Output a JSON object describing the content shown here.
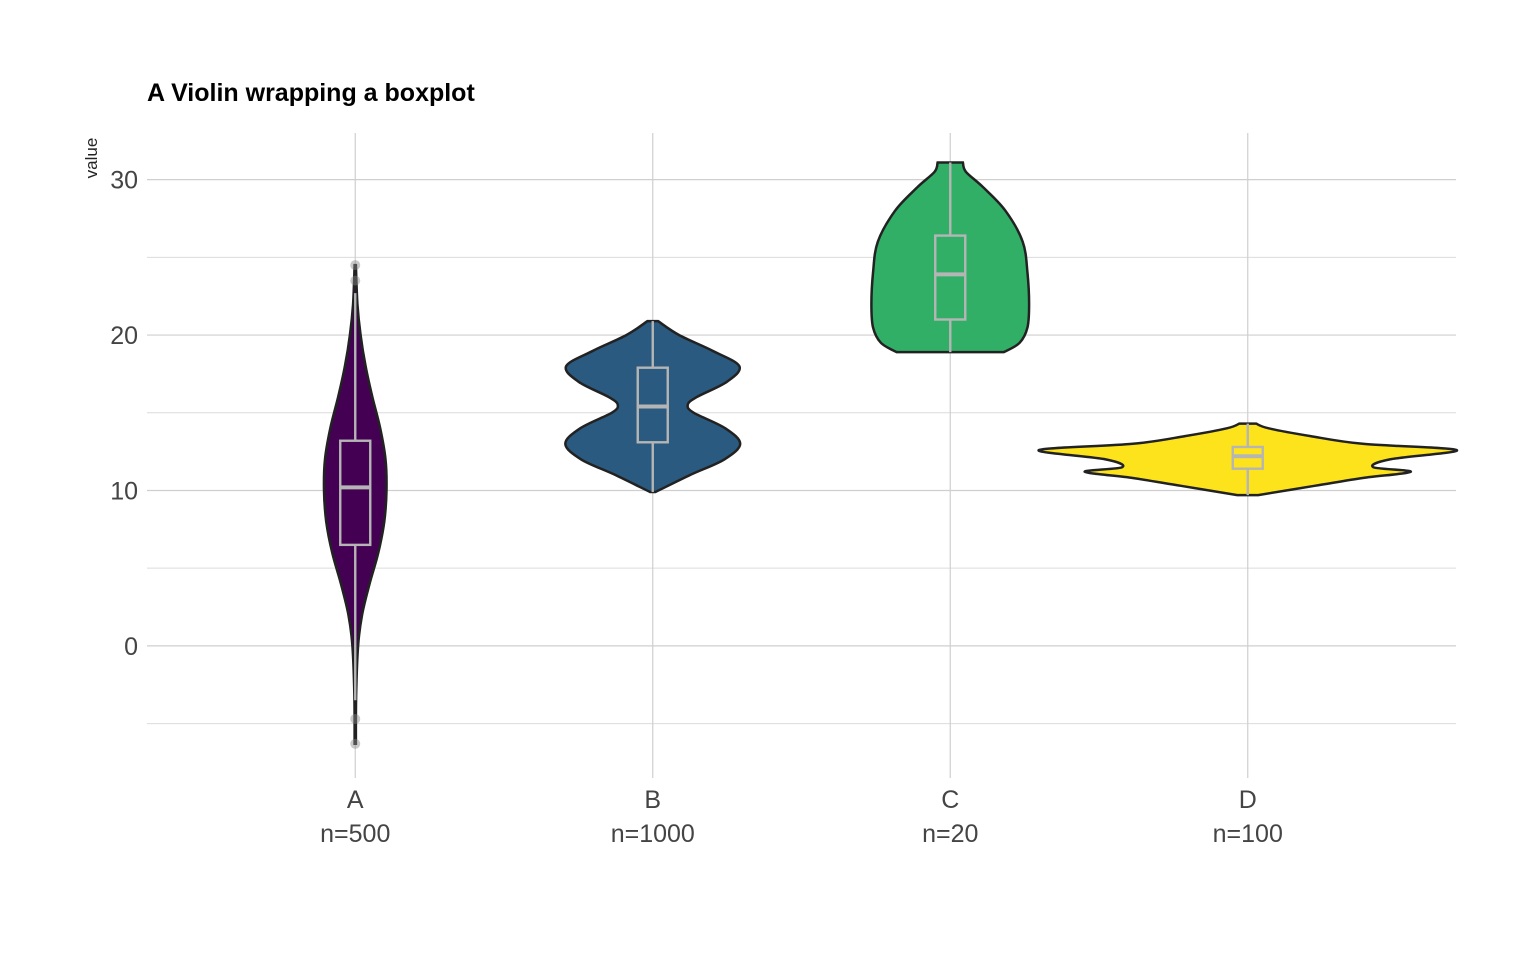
{
  "chart_data": {
    "type": "violin",
    "title": "A Violin wrapping a boxplot",
    "xlabel": "",
    "ylabel": "value",
    "ylim": [
      -8.5,
      33
    ],
    "yticks": [
      0,
      10,
      20,
      30
    ],
    "grid": true,
    "legend": "none",
    "categories": [
      "A",
      "B",
      "C",
      "D"
    ],
    "count_labels": [
      "n=500",
      "n=1000",
      "n=20",
      "n=100"
    ],
    "series": [
      {
        "category": "A",
        "color": "#440154",
        "min": -6.3,
        "max": 24.5,
        "box": {
          "q1": 6.5,
          "median": 10.2,
          "q3": 13.2,
          "whisker_low": -3.5,
          "whisker_high": 22.7
        },
        "outliers": [
          -6.3,
          -4.7,
          23.5,
          24.5
        ],
        "density": [
          [
            -6.3,
            0.02
          ],
          [
            -3,
            0.03
          ],
          [
            0,
            0.09
          ],
          [
            2,
            0.22
          ],
          [
            4,
            0.46
          ],
          [
            6,
            0.74
          ],
          [
            8,
            0.93
          ],
          [
            10,
            1.0
          ],
          [
            12,
            0.97
          ],
          [
            14,
            0.8
          ],
          [
            16,
            0.55
          ],
          [
            18,
            0.33
          ],
          [
            20,
            0.17
          ],
          [
            22,
            0.07
          ],
          [
            24.5,
            0.02
          ]
        ]
      },
      {
        "category": "B",
        "color": "#2A5A80",
        "min": 9.9,
        "max": 20.9,
        "box": {
          "q1": 13.1,
          "median": 15.4,
          "q3": 17.9,
          "whisker_low": 9.9,
          "whisker_high": 20.9
        },
        "outliers": [],
        "density": [
          [
            9.9,
            0.03
          ],
          [
            11,
            0.43
          ],
          [
            12,
            0.82
          ],
          [
            13,
            1.0
          ],
          [
            14,
            0.83
          ],
          [
            15,
            0.47
          ],
          [
            15.5,
            0.4
          ],
          [
            16,
            0.5
          ],
          [
            17,
            0.85
          ],
          [
            18,
            0.99
          ],
          [
            19,
            0.68
          ],
          [
            20,
            0.3
          ],
          [
            20.9,
            0.06
          ]
        ]
      },
      {
        "category": "C",
        "color": "#31AF67",
        "min": 18.9,
        "max": 31.1,
        "box": {
          "q1": 21.0,
          "median": 23.9,
          "q3": 26.4,
          "whisker_low": 18.9,
          "whisker_high": 31.1
        },
        "outliers": [],
        "density": [
          [
            18.9,
            0.68
          ],
          [
            19.5,
            0.88
          ],
          [
            20.5,
            0.98
          ],
          [
            22,
            1.0
          ],
          [
            24,
            0.98
          ],
          [
            26,
            0.92
          ],
          [
            28,
            0.7
          ],
          [
            29.5,
            0.42
          ],
          [
            30.5,
            0.2
          ],
          [
            31.1,
            0.16
          ]
        ]
      },
      {
        "category": "D",
        "color": "#FDE31C",
        "min": 9.7,
        "max": 14.3,
        "box": {
          "q1": 11.4,
          "median": 12.2,
          "q3": 12.8,
          "whisker_low": 9.7,
          "whisker_high": 14.3
        },
        "outliers": [],
        "density": [
          [
            9.7,
            0.05
          ],
          [
            10.3,
            0.32
          ],
          [
            10.8,
            0.55
          ],
          [
            11.2,
            0.78
          ],
          [
            11.5,
            0.6
          ],
          [
            12.0,
            0.68
          ],
          [
            12.6,
            1.0
          ],
          [
            13.0,
            0.55
          ],
          [
            13.5,
            0.3
          ],
          [
            14.0,
            0.1
          ],
          [
            14.3,
            0.04
          ]
        ]
      }
    ]
  }
}
